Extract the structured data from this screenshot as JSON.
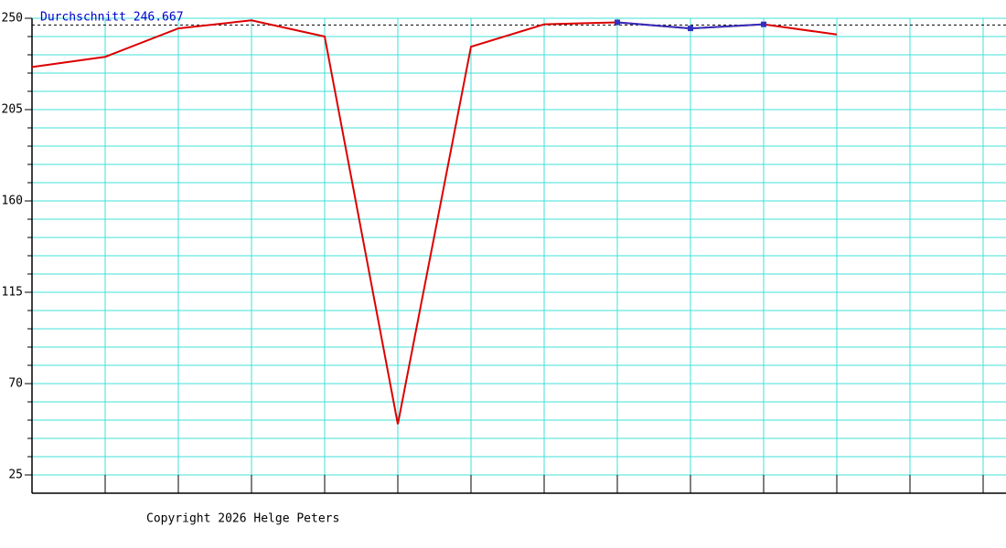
{
  "chart_data": {
    "type": "line",
    "categories": [
      null,
      null,
      null,
      null,
      null,
      null,
      null,
      null,
      null,
      null,
      null,
      null,
      null,
      null
    ],
    "series": [
      {
        "color": "#dd0000",
        "values": [
          226,
          231,
          245,
          249,
          241,
          50,
          236,
          247,
          248,
          245,
          247,
          242,
          null,
          null
        ]
      },
      {
        "color": "#3030c0",
        "markers": true,
        "values": [
          null,
          null,
          null,
          null,
          null,
          null,
          null,
          null,
          248,
          245,
          247,
          null,
          null,
          null
        ]
      }
    ],
    "ylim": [
      16,
      250
    ],
    "yticks": [
      25,
      70,
      115,
      160,
      205,
      250
    ],
    "yminor": [
      25,
      34,
      43,
      52,
      61,
      70,
      79,
      88,
      97,
      106,
      115,
      124,
      133,
      142,
      151,
      160,
      169,
      178,
      187,
      196,
      205,
      214,
      223,
      232,
      241,
      250
    ],
    "grid": true,
    "grid_color": "#40e0d8",
    "average": {
      "label": "Durchschnitt 246.667",
      "value": 246.667,
      "color": "#0000cc"
    },
    "footer": "Copyright 2026 Helge Peters"
  }
}
